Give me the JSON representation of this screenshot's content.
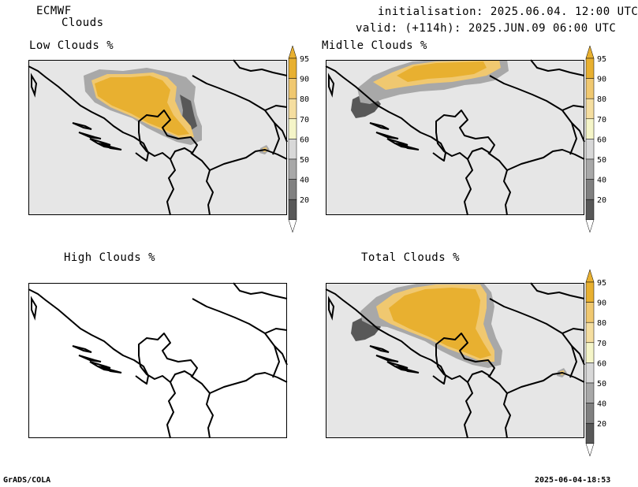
{
  "header": {
    "model": "ECMWF",
    "field": "Clouds",
    "init_line": "initialisation: 2025.06.04. 12:00 UTC",
    "valid_line": "valid: (+114h): 2025.JUN.09 06:00 UTC"
  },
  "panels": [
    {
      "title": "Low Clouds %"
    },
    {
      "title": "Midlle Clouds %"
    },
    {
      "title": "High Clouds %"
    },
    {
      "title": "Total Clouds %"
    }
  ],
  "colorbar": {
    "levels": [
      "95",
      "90",
      "80",
      "70",
      "60",
      "50",
      "40",
      "20"
    ],
    "colors": [
      "#e8b030",
      "#f0c870",
      "#f5dea0",
      "#f5f5c8",
      "#d8d8d8",
      "#a8a8a8",
      "#808080",
      "#585858"
    ]
  },
  "colors": {
    "background_field": "#e6e6e6",
    "cloud_high": "#e8b030",
    "cloud_mid": "#f0c870",
    "cloud_grey": "#a8a8a8",
    "cloud_dark": "#585858"
  },
  "footer": {
    "left": "GrADS/COLA",
    "right": "2025-06-04-18:53"
  }
}
